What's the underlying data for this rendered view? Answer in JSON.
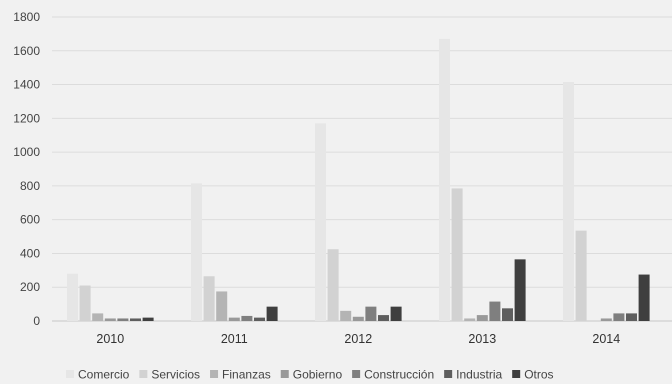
{
  "chart_data": {
    "type": "bar",
    "title": "",
    "xlabel": "",
    "ylabel": "",
    "categories": [
      "2010",
      "2011",
      "2012",
      "2013",
      "2014"
    ],
    "ylim": [
      0,
      1800
    ],
    "yticks": [
      "0",
      "200",
      "400",
      "600",
      "800",
      "1000",
      "1200",
      "1400",
      "1600",
      "1800"
    ],
    "grid": true,
    "legend_position": "bottom",
    "series": [
      {
        "name": "Comercio",
        "color": "#e6e6e6",
        "values": [
          280,
          815,
          1170,
          1670,
          1415
        ]
      },
      {
        "name": "Servicios",
        "color": "#d2d2d2",
        "values": [
          210,
          265,
          425,
          785,
          535
        ]
      },
      {
        "name": "Finanzas",
        "color": "#b4b4b4",
        "values": [
          45,
          175,
          60,
          15,
          0
        ]
      },
      {
        "name": "Gobierno",
        "color": "#999999",
        "values": [
          15,
          20,
          25,
          35,
          15
        ]
      },
      {
        "name": "Construcción",
        "color": "#7f7f7f",
        "values": [
          15,
          30,
          85,
          115,
          45
        ]
      },
      {
        "name": "Industria",
        "color": "#5e5e5e",
        "values": [
          15,
          20,
          35,
          75,
          45
        ]
      },
      {
        "name": "Otros",
        "color": "#3f3f3f",
        "values": [
          20,
          85,
          85,
          365,
          275
        ]
      }
    ]
  }
}
